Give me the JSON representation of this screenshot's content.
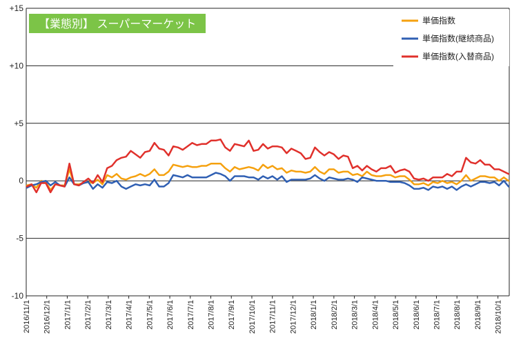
{
  "chart_data": {
    "type": "line",
    "title": "【業態別】 スーパーマーケット",
    "xlabel": "",
    "ylabel": "",
    "ylim": [
      -10,
      15
    ],
    "y_ticks": [
      15,
      10,
      5,
      0,
      -5,
      -10
    ],
    "y_tick_labels": [
      "+15",
      "+10",
      "+5",
      "0",
      "-5",
      "-10"
    ],
    "grid": "horizontal",
    "legend_position": "top-right",
    "x_labels": [
      "2016/11/1",
      "2016/12/1",
      "2017/1/1",
      "2017/2/1",
      "2017/3/1",
      "2017/4/1",
      "2017/5/1",
      "2017/6/1",
      "2017/7/1",
      "2017/8/1",
      "2017/9/1",
      "2017/10/1",
      "2017/11/1",
      "2017/12/1",
      "2018/1/1",
      "2018/2/1",
      "2018/3/1",
      "2018/4/1",
      "2018/5/1",
      "2018/6/1",
      "2018/7/1",
      "2018/8/1",
      "2018/9/1",
      "2018/10/1"
    ],
    "series": [
      {
        "name": "単価指数",
        "color": "#f5a10f",
        "values": [
          -0.4,
          -0.3,
          -0.6,
          0.0,
          -0.1,
          -0.8,
          -0.3,
          -0.4,
          -0.4,
          1.0,
          -0.3,
          -0.3,
          -0.2,
          -0.1,
          -0.2,
          0.1,
          -0.3,
          0.5,
          0.3,
          0.6,
          0.2,
          0.1,
          0.3,
          0.4,
          0.6,
          0.4,
          0.6,
          1.0,
          0.5,
          0.5,
          0.8,
          1.4,
          1.3,
          1.2,
          1.3,
          1.2,
          1.2,
          1.3,
          1.3,
          1.5,
          1.5,
          1.5,
          1.1,
          0.8,
          1.2,
          1.0,
          1.1,
          1.2,
          1.1,
          0.9,
          1.4,
          1.1,
          1.3,
          1.0,
          1.1,
          0.7,
          0.9,
          0.8,
          0.8,
          0.7,
          0.8,
          1.2,
          0.8,
          0.6,
          1.0,
          1.0,
          0.7,
          0.8,
          0.8,
          0.5,
          0.6,
          0.4,
          0.8,
          0.5,
          0.4,
          0.4,
          0.5,
          0.5,
          0.3,
          0.4,
          0.4,
          0.1,
          -0.3,
          -0.3,
          -0.2,
          -0.4,
          -0.1,
          -0.2,
          0.0,
          -0.2,
          -0.1,
          -0.3,
          0.0,
          0.5,
          0.0,
          0.2,
          0.4,
          0.4,
          0.3,
          0.3,
          0.0,
          0.3,
          0.0
        ]
      },
      {
        "name": "単価指数(継続商品)",
        "color": "#2f5fb3",
        "values": [
          -0.6,
          -0.4,
          -0.3,
          -0.1,
          0.0,
          -0.4,
          -0.1,
          -0.4,
          -0.5,
          0.3,
          -0.3,
          -0.4,
          -0.2,
          -0.1,
          -0.7,
          -0.3,
          -0.6,
          -0.1,
          -0.2,
          0.0,
          -0.5,
          -0.7,
          -0.5,
          -0.3,
          -0.4,
          -0.3,
          -0.4,
          0.1,
          -0.5,
          -0.5,
          -0.2,
          0.5,
          0.4,
          0.3,
          0.5,
          0.3,
          0.3,
          0.3,
          0.3,
          0.5,
          0.7,
          0.6,
          0.4,
          0.0,
          0.4,
          0.4,
          0.4,
          0.3,
          0.3,
          0.1,
          0.4,
          0.2,
          0.4,
          0.1,
          0.4,
          -0.1,
          0.1,
          0.1,
          0.1,
          0.1,
          0.2,
          0.5,
          0.2,
          0.0,
          0.3,
          0.2,
          0.1,
          0.1,
          0.2,
          0.1,
          -0.1,
          0.3,
          0.2,
          0.1,
          0.0,
          0.0,
          0.0,
          -0.1,
          -0.1,
          -0.1,
          -0.2,
          -0.4,
          -0.7,
          -0.7,
          -0.6,
          -0.8,
          -0.5,
          -0.6,
          -0.5,
          -0.7,
          -0.5,
          -0.8,
          -0.5,
          -0.3,
          -0.5,
          -0.3,
          -0.1,
          -0.1,
          -0.2,
          -0.1,
          -0.4,
          0.0,
          -0.5
        ]
      },
      {
        "name": "単価指数(入替商品)",
        "color": "#e0302b",
        "values": [
          -0.5,
          -0.3,
          -1.0,
          -0.2,
          -0.2,
          -1.0,
          -0.3,
          -0.4,
          -0.5,
          1.5,
          -0.3,
          -0.4,
          -0.1,
          0.2,
          -0.2,
          0.5,
          -0.1,
          1.1,
          1.3,
          1.8,
          2.0,
          2.1,
          2.6,
          2.3,
          2.0,
          2.5,
          2.6,
          3.3,
          2.8,
          2.7,
          2.2,
          3.0,
          2.9,
          2.7,
          3.0,
          3.3,
          3.1,
          3.2,
          3.2,
          3.5,
          3.5,
          3.6,
          2.9,
          2.6,
          3.2,
          3.1,
          3.0,
          3.5,
          2.6,
          2.7,
          3.2,
          2.8,
          3.0,
          3.0,
          2.9,
          2.4,
          2.8,
          2.6,
          2.4,
          1.9,
          2.0,
          2.9,
          2.5,
          2.2,
          2.5,
          2.3,
          1.9,
          2.2,
          2.1,
          1.1,
          1.3,
          0.9,
          1.3,
          1.0,
          0.8,
          1.1,
          1.1,
          1.3,
          0.7,
          0.9,
          1.0,
          0.8,
          0.2,
          0.1,
          0.2,
          0.0,
          0.3,
          0.3,
          0.3,
          0.6,
          0.4,
          0.8,
          0.8,
          2.0,
          1.6,
          1.5,
          1.8,
          1.4,
          1.4,
          1.0,
          1.0,
          0.8,
          0.6
        ]
      }
    ]
  }
}
